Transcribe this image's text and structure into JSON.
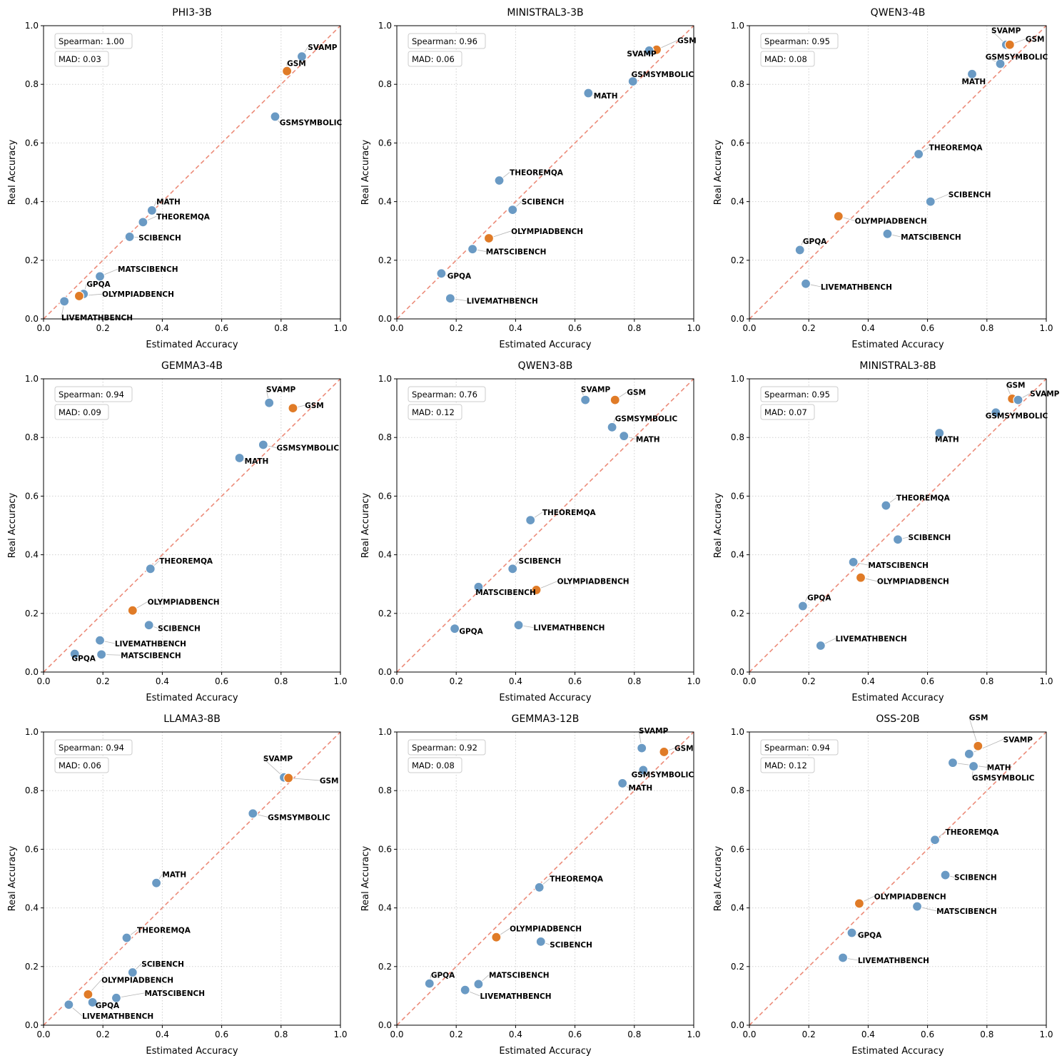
{
  "colors": {
    "normal": "#6a9ac4",
    "highlight": "#e07b27",
    "diagonal": "#ec8b79",
    "grid": "#cfcfcf"
  },
  "chart_data": [
    {
      "type": "scatter",
      "title": "PHI3-3B",
      "xlabel": "Estimated Accuracy",
      "ylabel": "Real Accuracy",
      "xlim": [
        0,
        1
      ],
      "ylim": [
        0,
        1
      ],
      "ticks": [
        "0.0",
        "0.2",
        "0.4",
        "0.6",
        "0.8",
        "1.0"
      ],
      "spearman": "Spearman: 1.00",
      "mad": "MAD: 0.03",
      "points": [
        {
          "label": "SVAMP",
          "x": 0.87,
          "y": 0.895,
          "highlight": false,
          "lx": 0.89,
          "ly": 0.917
        },
        {
          "label": "GSM",
          "x": 0.82,
          "y": 0.845,
          "highlight": true,
          "lx": 0.82,
          "ly": 0.863
        },
        {
          "label": "GSMSYMBOLIC",
          "x": 0.78,
          "y": 0.69,
          "highlight": false,
          "lx": 0.795,
          "ly": 0.66
        },
        {
          "label": "MATH",
          "x": 0.365,
          "y": 0.37,
          "highlight": false,
          "lx": 0.38,
          "ly": 0.39
        },
        {
          "label": "THEOREMQA",
          "x": 0.335,
          "y": 0.33,
          "highlight": false,
          "lx": 0.38,
          "ly": 0.34
        },
        {
          "label": "SCIBENCH",
          "x": 0.29,
          "y": 0.28,
          "highlight": false,
          "lx": 0.32,
          "ly": 0.268
        },
        {
          "label": "MATSCIBENCH",
          "x": 0.19,
          "y": 0.145,
          "highlight": false,
          "lx": 0.25,
          "ly": 0.16
        },
        {
          "label": "GPQA",
          "x": 0.135,
          "y": 0.085,
          "highlight": false,
          "lx": 0.145,
          "ly": 0.11
        },
        {
          "label": "OLYMPIADBENCH",
          "x": 0.12,
          "y": 0.078,
          "highlight": true,
          "lx": 0.197,
          "ly": 0.075
        },
        {
          "label": "LIVEMATHBENCH",
          "x": 0.07,
          "y": 0.06,
          "highlight": false,
          "lx": 0.06,
          "ly": -0.005
        }
      ]
    },
    {
      "type": "scatter",
      "title": "MINISTRAL3-3B",
      "xlabel": "Estimated Accuracy",
      "ylabel": "Real Accuracy",
      "xlim": [
        0,
        1
      ],
      "ylim": [
        0,
        1
      ],
      "ticks": [
        "0.0",
        "0.2",
        "0.4",
        "0.6",
        "0.8",
        "1.0"
      ],
      "spearman": "Spearman: 0.96",
      "mad": "MAD: 0.06",
      "points": [
        {
          "label": "GSM",
          "x": 0.875,
          "y": 0.918,
          "highlight": true,
          "lx": 0.945,
          "ly": 0.94
        },
        {
          "label": "SVAMP",
          "x": 0.85,
          "y": 0.915,
          "highlight": false,
          "lx": 0.775,
          "ly": 0.895
        },
        {
          "label": "GSMSYMBOLIC",
          "x": 0.795,
          "y": 0.81,
          "highlight": false,
          "lx": 0.79,
          "ly": 0.825
        },
        {
          "label": "MATH",
          "x": 0.645,
          "y": 0.77,
          "highlight": false,
          "lx": 0.663,
          "ly": 0.752
        },
        {
          "label": "THEOREMQA",
          "x": 0.345,
          "y": 0.472,
          "highlight": false,
          "lx": 0.38,
          "ly": 0.49
        },
        {
          "label": "SCIBENCH",
          "x": 0.39,
          "y": 0.372,
          "highlight": false,
          "lx": 0.42,
          "ly": 0.39
        },
        {
          "label": "OLYMPIADBENCH",
          "x": 0.31,
          "y": 0.275,
          "highlight": true,
          "lx": 0.385,
          "ly": 0.29
        },
        {
          "label": "MATSCIBENCH",
          "x": 0.255,
          "y": 0.238,
          "highlight": false,
          "lx": 0.3,
          "ly": 0.22
        },
        {
          "label": "GPQA",
          "x": 0.15,
          "y": 0.155,
          "highlight": false,
          "lx": 0.17,
          "ly": 0.138
        },
        {
          "label": "LIVEMATHBENCH",
          "x": 0.18,
          "y": 0.07,
          "highlight": false,
          "lx": 0.235,
          "ly": 0.052
        }
      ]
    },
    {
      "type": "scatter",
      "title": "QWEN3-4B",
      "xlabel": "Estimated Accuracy",
      "ylabel": "Real Accuracy",
      "xlim": [
        0,
        1
      ],
      "ylim": [
        0,
        1
      ],
      "ticks": [
        "0.0",
        "0.2",
        "0.4",
        "0.6",
        "0.8",
        "1.0"
      ],
      "spearman": "Spearman: 0.95",
      "mad": "MAD: 0.08",
      "points": [
        {
          "label": "SVAMP",
          "x": 0.865,
          "y": 0.935,
          "highlight": false,
          "lx": 0.815,
          "ly": 0.975
        },
        {
          "label": "GSM",
          "x": 0.877,
          "y": 0.935,
          "highlight": true,
          "lx": 0.93,
          "ly": 0.945
        },
        {
          "label": "GSMSYMBOLIC",
          "x": 0.845,
          "y": 0.87,
          "highlight": false,
          "lx": 0.795,
          "ly": 0.885
        },
        {
          "label": "MATH",
          "x": 0.75,
          "y": 0.835,
          "highlight": false,
          "lx": 0.715,
          "ly": 0.8
        },
        {
          "label": "THEOREMQA",
          "x": 0.57,
          "y": 0.562,
          "highlight": false,
          "lx": 0.605,
          "ly": 0.575
        },
        {
          "label": "SCIBENCH",
          "x": 0.61,
          "y": 0.4,
          "highlight": false,
          "lx": 0.67,
          "ly": 0.415
        },
        {
          "label": "OLYMPIADBENCH",
          "x": 0.3,
          "y": 0.35,
          "highlight": true,
          "lx": 0.355,
          "ly": 0.325
        },
        {
          "label": "MATSCIBENCH",
          "x": 0.465,
          "y": 0.29,
          "highlight": false,
          "lx": 0.51,
          "ly": 0.27
        },
        {
          "label": "GPQA",
          "x": 0.17,
          "y": 0.235,
          "highlight": false,
          "lx": 0.18,
          "ly": 0.255
        },
        {
          "label": "LIVEMATHBENCH",
          "x": 0.19,
          "y": 0.12,
          "highlight": false,
          "lx": 0.24,
          "ly": 0.1
        }
      ]
    },
    {
      "type": "scatter",
      "title": "GEMMA3-4B",
      "xlabel": "Estimated Accuracy",
      "ylabel": "Real Accuracy",
      "xlim": [
        0,
        1
      ],
      "ylim": [
        0,
        1
      ],
      "ticks": [
        "0.0",
        "0.2",
        "0.4",
        "0.6",
        "0.8",
        "1.0"
      ],
      "spearman": "Spearman: 0.94",
      "mad": "MAD: 0.09",
      "points": [
        {
          "label": "SVAMP",
          "x": 0.76,
          "y": 0.918,
          "highlight": false,
          "lx": 0.75,
          "ly": 0.955
        },
        {
          "label": "GSM",
          "x": 0.84,
          "y": 0.9,
          "highlight": true,
          "lx": 0.88,
          "ly": 0.9
        },
        {
          "label": "GSMSYMBOLIC",
          "x": 0.74,
          "y": 0.775,
          "highlight": false,
          "lx": 0.785,
          "ly": 0.755
        },
        {
          "label": "MATH",
          "x": 0.66,
          "y": 0.73,
          "highlight": false,
          "lx": 0.677,
          "ly": 0.71
        },
        {
          "label": "THEOREMQA",
          "x": 0.36,
          "y": 0.352,
          "highlight": false,
          "lx": 0.39,
          "ly": 0.37
        },
        {
          "label": "OLYMPIADBENCH",
          "x": 0.3,
          "y": 0.21,
          "highlight": true,
          "lx": 0.35,
          "ly": 0.23
        },
        {
          "label": "SCIBENCH",
          "x": 0.355,
          "y": 0.16,
          "highlight": false,
          "lx": 0.385,
          "ly": 0.14
        },
        {
          "label": "LIVEMATHBENCH",
          "x": 0.19,
          "y": 0.108,
          "highlight": false,
          "lx": 0.24,
          "ly": 0.088
        },
        {
          "label": "GPQA",
          "x": 0.105,
          "y": 0.062,
          "highlight": false,
          "lx": 0.095,
          "ly": 0.038
        },
        {
          "label": "MATSCIBENCH",
          "x": 0.195,
          "y": 0.06,
          "highlight": false,
          "lx": 0.26,
          "ly": 0.048
        }
      ]
    },
    {
      "type": "scatter",
      "title": "QWEN3-8B",
      "xlabel": "Estimated Accuracy",
      "ylabel": "Real Accuracy",
      "xlim": [
        0,
        1
      ],
      "ylim": [
        0,
        1
      ],
      "ticks": [
        "0.0",
        "0.2",
        "0.4",
        "0.6",
        "0.8",
        "1.0"
      ],
      "spearman": "Spearman: 0.76",
      "mad": "MAD: 0.12",
      "points": [
        {
          "label": "SVAMP",
          "x": 0.635,
          "y": 0.928,
          "highlight": false,
          "lx": 0.62,
          "ly": 0.955
        },
        {
          "label": "GSM",
          "x": 0.735,
          "y": 0.928,
          "highlight": true,
          "lx": 0.775,
          "ly": 0.945
        },
        {
          "label": "GSMSYMBOLIC",
          "x": 0.725,
          "y": 0.835,
          "highlight": false,
          "lx": 0.735,
          "ly": 0.855
        },
        {
          "label": "MATH",
          "x": 0.765,
          "y": 0.805,
          "highlight": false,
          "lx": 0.805,
          "ly": 0.785
        },
        {
          "label": "THEOREMQA",
          "x": 0.45,
          "y": 0.518,
          "highlight": false,
          "lx": 0.49,
          "ly": 0.535
        },
        {
          "label": "SCIBENCH",
          "x": 0.39,
          "y": 0.352,
          "highlight": false,
          "lx": 0.41,
          "ly": 0.37
        },
        {
          "label": "OLYMPIADBENCH",
          "x": 0.47,
          "y": 0.28,
          "highlight": true,
          "lx": 0.54,
          "ly": 0.3
        },
        {
          "label": "MATSCIBENCH",
          "x": 0.275,
          "y": 0.29,
          "highlight": false,
          "lx": 0.265,
          "ly": 0.263
        },
        {
          "label": "GPQA",
          "x": 0.195,
          "y": 0.148,
          "highlight": false,
          "lx": 0.21,
          "ly": 0.13
        },
        {
          "label": "LIVEMATHBENCH",
          "x": 0.41,
          "y": 0.16,
          "highlight": false,
          "lx": 0.46,
          "ly": 0.142
        }
      ]
    },
    {
      "type": "scatter",
      "title": "MINISTRAL3-8B",
      "xlabel": "Estimated Accuracy",
      "ylabel": "Real Accuracy",
      "xlim": [
        0,
        1
      ],
      "ylim": [
        0,
        1
      ],
      "ticks": [
        "0.0",
        "0.2",
        "0.4",
        "0.6",
        "0.8",
        "1.0"
      ],
      "spearman": "Spearman: 0.95",
      "mad": "MAD: 0.07",
      "points": [
        {
          "label": "GSM",
          "x": 0.885,
          "y": 0.932,
          "highlight": true,
          "lx": 0.865,
          "ly": 0.97
        },
        {
          "label": "SVAMP",
          "x": 0.905,
          "y": 0.928,
          "highlight": false,
          "lx": 0.945,
          "ly": 0.94
        },
        {
          "label": "GSMSYMBOLIC",
          "x": 0.83,
          "y": 0.885,
          "highlight": false,
          "lx": 0.795,
          "ly": 0.865
        },
        {
          "label": "MATH",
          "x": 0.64,
          "y": 0.815,
          "highlight": false,
          "lx": 0.625,
          "ly": 0.785
        },
        {
          "label": "THEOREMQA",
          "x": 0.46,
          "y": 0.568,
          "highlight": false,
          "lx": 0.495,
          "ly": 0.585
        },
        {
          "label": "SCIBENCH",
          "x": 0.5,
          "y": 0.452,
          "highlight": false,
          "lx": 0.535,
          "ly": 0.45
        },
        {
          "label": "MATSCIBENCH",
          "x": 0.35,
          "y": 0.375,
          "highlight": false,
          "lx": 0.4,
          "ly": 0.355
        },
        {
          "label": "OLYMPIADBENCH",
          "x": 0.375,
          "y": 0.322,
          "highlight": true,
          "lx": 0.43,
          "ly": 0.3
        },
        {
          "label": "GPQA",
          "x": 0.18,
          "y": 0.225,
          "highlight": false,
          "lx": 0.195,
          "ly": 0.245
        },
        {
          "label": "LIVEMATHBENCH",
          "x": 0.24,
          "y": 0.09,
          "highlight": false,
          "lx": 0.29,
          "ly": 0.105
        }
      ]
    },
    {
      "type": "scatter",
      "title": "LLAMA3-8B",
      "xlabel": "Estimated Accuracy",
      "ylabel": "Real Accuracy",
      "xlim": [
        0,
        1
      ],
      "ylim": [
        0,
        1
      ],
      "ticks": [
        "0.0",
        "0.2",
        "0.4",
        "0.6",
        "0.8",
        "1.0"
      ],
      "spearman": "Spearman: 0.94",
      "mad": "MAD: 0.06",
      "points": [
        {
          "label": "SVAMP",
          "x": 0.81,
          "y": 0.845,
          "highlight": false,
          "lx": 0.74,
          "ly": 0.9
        },
        {
          "label": "GSM",
          "x": 0.825,
          "y": 0.843,
          "highlight": true,
          "lx": 0.93,
          "ly": 0.825
        },
        {
          "label": "GSMSYMBOLIC",
          "x": 0.705,
          "y": 0.722,
          "highlight": false,
          "lx": 0.755,
          "ly": 0.7
        },
        {
          "label": "MATH",
          "x": 0.38,
          "y": 0.485,
          "highlight": false,
          "lx": 0.4,
          "ly": 0.505
        },
        {
          "label": "THEOREMQA",
          "x": 0.28,
          "y": 0.298,
          "highlight": false,
          "lx": 0.315,
          "ly": 0.315
        },
        {
          "label": "SCIBENCH",
          "x": 0.3,
          "y": 0.18,
          "highlight": false,
          "lx": 0.33,
          "ly": 0.2
        },
        {
          "label": "OLYMPIADBENCH",
          "x": 0.15,
          "y": 0.105,
          "highlight": true,
          "lx": 0.195,
          "ly": 0.145
        },
        {
          "label": "MATSCIBENCH",
          "x": 0.245,
          "y": 0.093,
          "highlight": false,
          "lx": 0.34,
          "ly": 0.1
        },
        {
          "label": "GPQA",
          "x": 0.165,
          "y": 0.078,
          "highlight": false,
          "lx": 0.175,
          "ly": 0.058
        },
        {
          "label": "LIVEMATHBENCH",
          "x": 0.085,
          "y": 0.07,
          "highlight": false,
          "lx": 0.13,
          "ly": 0.022
        }
      ]
    },
    {
      "type": "scatter",
      "title": "GEMMA3-12B",
      "xlabel": "Estimated Accuracy",
      "ylabel": "Real Accuracy",
      "xlim": [
        0,
        1
      ],
      "ylim": [
        0,
        1
      ],
      "ticks": [
        "0.0",
        "0.2",
        "0.4",
        "0.6",
        "0.8",
        "1.0"
      ],
      "spearman": "Spearman: 0.92",
      "mad": "MAD: 0.08",
      "points": [
        {
          "label": "SVAMP",
          "x": 0.825,
          "y": 0.945,
          "highlight": false,
          "lx": 0.815,
          "ly": 0.995
        },
        {
          "label": "GSM",
          "x": 0.9,
          "y": 0.932,
          "highlight": true,
          "lx": 0.935,
          "ly": 0.935
        },
        {
          "label": "GSMSYMBOLIC",
          "x": 0.83,
          "y": 0.87,
          "highlight": false,
          "lx": 0.79,
          "ly": 0.845
        },
        {
          "label": "MATH",
          "x": 0.76,
          "y": 0.825,
          "highlight": false,
          "lx": 0.78,
          "ly": 0.8
        },
        {
          "label": "THEOREMQA",
          "x": 0.48,
          "y": 0.47,
          "highlight": false,
          "lx": 0.515,
          "ly": 0.49
        },
        {
          "label": "OLYMPIADBENCH",
          "x": 0.335,
          "y": 0.3,
          "highlight": true,
          "lx": 0.38,
          "ly": 0.32
        },
        {
          "label": "SCIBENCH",
          "x": 0.485,
          "y": 0.285,
          "highlight": false,
          "lx": 0.515,
          "ly": 0.265
        },
        {
          "label": "GPQA",
          "x": 0.11,
          "y": 0.142,
          "highlight": false,
          "lx": 0.115,
          "ly": 0.162
        },
        {
          "label": "MATSCIBENCH",
          "x": 0.275,
          "y": 0.14,
          "highlight": false,
          "lx": 0.31,
          "ly": 0.162
        },
        {
          "label": "LIVEMATHBENCH",
          "x": 0.23,
          "y": 0.12,
          "highlight": false,
          "lx": 0.28,
          "ly": 0.09
        }
      ]
    },
    {
      "type": "scatter",
      "title": "OSS-20B",
      "xlabel": "Estimated Accuracy",
      "ylabel": "Real Accuracy",
      "xlim": [
        0,
        1
      ],
      "ylim": [
        0,
        1
      ],
      "ticks": [
        "0.0",
        "0.2",
        "0.4",
        "0.6",
        "0.8",
        "1.0"
      ],
      "spearman": "Spearman: 0.94",
      "mad": "MAD: 0.12",
      "points": [
        {
          "label": "GSM",
          "x": 0.77,
          "y": 0.952,
          "highlight": true,
          "lx": 0.74,
          "ly": 1.04
        },
        {
          "label": "SVAMP",
          "x": 0.74,
          "y": 0.925,
          "highlight": false,
          "lx": 0.855,
          "ly": 0.965
        },
        {
          "label": "MATH",
          "x": 0.685,
          "y": 0.895,
          "highlight": false,
          "lx": 0.8,
          "ly": 0.87
        },
        {
          "label": "GSMSYMBOLIC",
          "x": 0.755,
          "y": 0.883,
          "highlight": false,
          "lx": 0.75,
          "ly": 0.835
        },
        {
          "label": "THEOREMQA",
          "x": 0.625,
          "y": 0.632,
          "highlight": false,
          "lx": 0.66,
          "ly": 0.65
        },
        {
          "label": "SCIBENCH",
          "x": 0.66,
          "y": 0.512,
          "highlight": false,
          "lx": 0.69,
          "ly": 0.495
        },
        {
          "label": "OLYMPIADBENCH",
          "x": 0.37,
          "y": 0.415,
          "highlight": true,
          "lx": 0.42,
          "ly": 0.43
        },
        {
          "label": "MATSCIBENCH",
          "x": 0.565,
          "y": 0.405,
          "highlight": false,
          "lx": 0.63,
          "ly": 0.38
        },
        {
          "label": "GPQA",
          "x": 0.345,
          "y": 0.315,
          "highlight": false,
          "lx": 0.365,
          "ly": 0.298
        },
        {
          "label": "LIVEMATHBENCH",
          "x": 0.315,
          "y": 0.23,
          "highlight": false,
          "lx": 0.365,
          "ly": 0.212
        }
      ]
    }
  ]
}
